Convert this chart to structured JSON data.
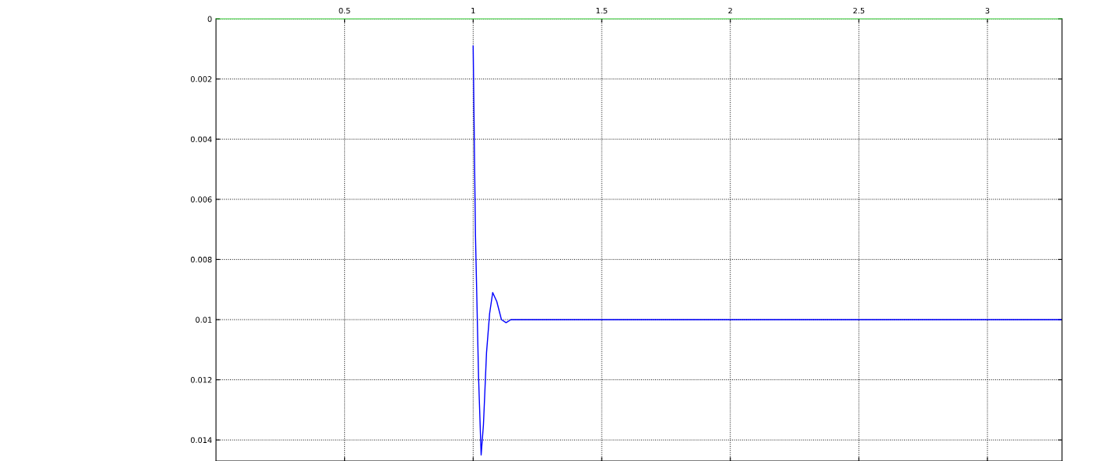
{
  "chart_data": {
    "type": "line",
    "series": [
      {
        "color": "#0000ff",
        "x": [
          1.0,
          1.009,
          1.021,
          1.031,
          1.04,
          1.052,
          1.064,
          1.076,
          1.092,
          1.11,
          1.128,
          1.147,
          1.177,
          3.29
        ],
        "values": [
          0.0009,
          0.0072,
          0.0119,
          0.0145,
          0.0135,
          0.0111,
          0.0098,
          0.0091,
          0.0094,
          0.01,
          0.0101,
          0.01,
          0.01,
          0.01
        ]
      }
    ],
    "xlim": [
      0,
      3.29
    ],
    "xticks": [
      0.5,
      1,
      1.5,
      2,
      2.5,
      3
    ],
    "ylim": [
      0.0147,
      0
    ],
    "yticks": [
      0,
      0.002,
      0.004,
      0.006,
      0.008,
      0.01,
      0.012,
      0.014
    ],
    "grid": true,
    "line_style": "solid",
    "marker": "none"
  }
}
